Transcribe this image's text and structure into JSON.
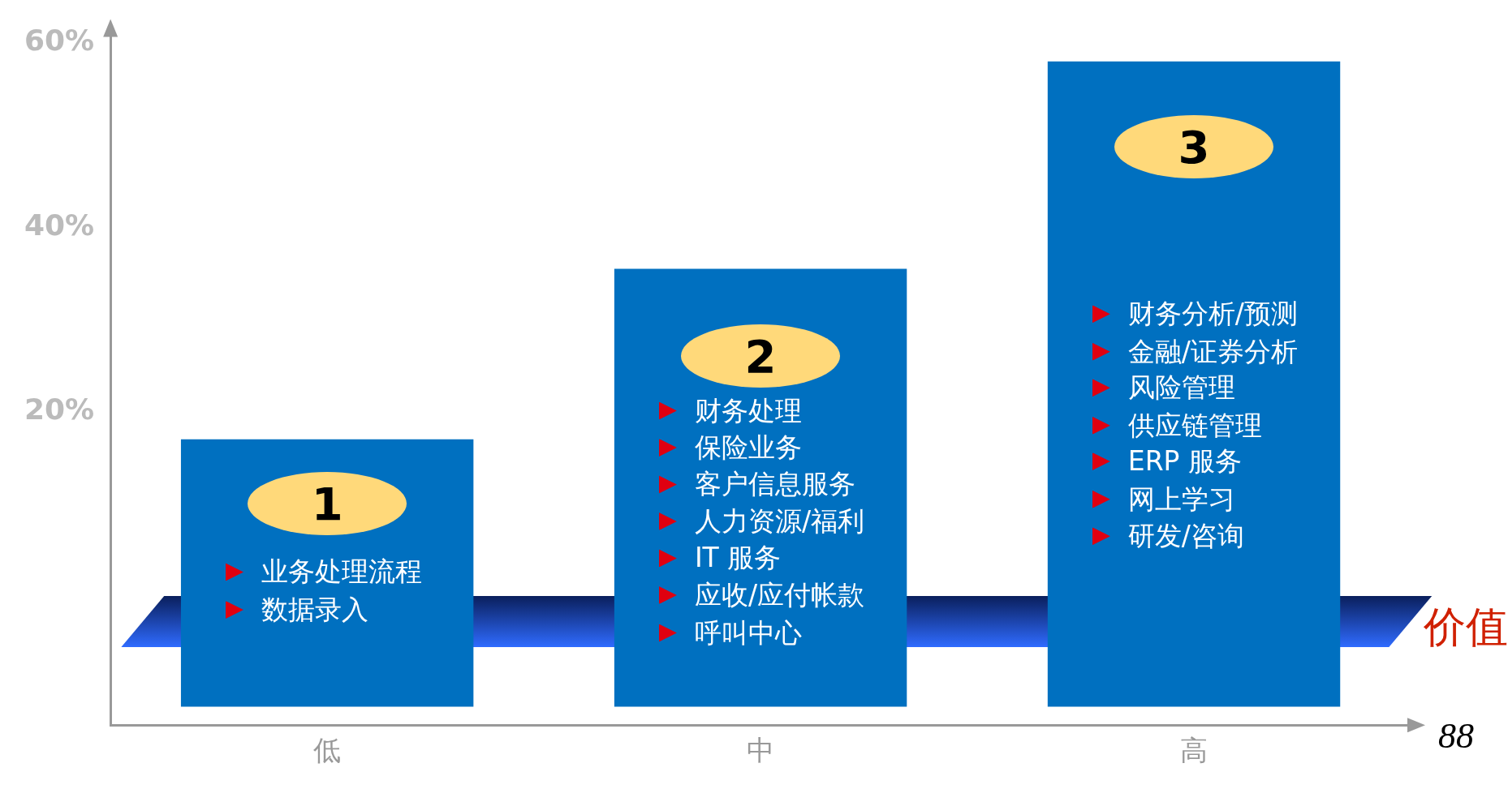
{
  "chart_data": {
    "type": "bar",
    "categories": [
      "低",
      "中",
      "高"
    ],
    "base": [
      -12,
      -12,
      -12
    ],
    "values": [
      29,
      47.5,
      70
    ],
    "color": "#0070c0",
    "ylim": [
      -14,
      61
    ],
    "yticks": [
      {
        "value": 20,
        "label": "20%"
      },
      {
        "value": 40,
        "label": "40%"
      },
      {
        "value": 60,
        "label": "60%"
      }
    ],
    "grid": false,
    "legend": false,
    "annotations": [
      "1",
      "业务处理流程",
      "数据录入",
      "2",
      "财务处理",
      "保险业务",
      "客户信息服务",
      "人力资源/福利",
      "IT 服务",
      "应收/应付帐款",
      "呼叫中心",
      "3",
      "财务分析/预测",
      "金融/证券分析",
      "风险管理",
      "供应链管理",
      "ERP 服务",
      "网上学习",
      "研发/咨询",
      "价值",
      "88"
    ]
  }
}
